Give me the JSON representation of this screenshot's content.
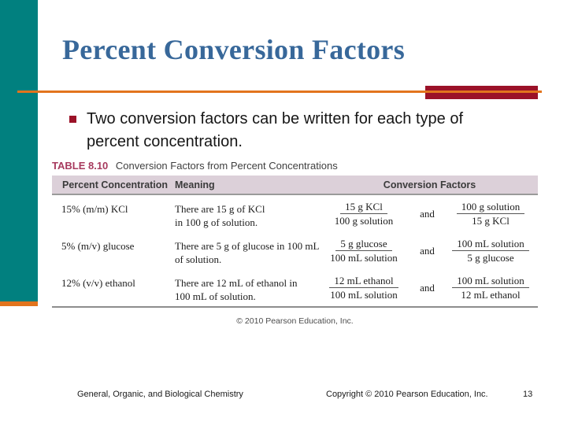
{
  "slide": {
    "title": "Percent Conversion Factors",
    "bullet_text": "Two conversion factors can be written for each type of percent concentration."
  },
  "table": {
    "label": "TABLE 8.10",
    "heading": "Conversion Factors from Percent Concentrations",
    "columns": [
      "Percent Concentration",
      "Meaning",
      "Conversion Factors"
    ],
    "rows": [
      {
        "percent": "15% (m/m) KCl",
        "meaning": [
          "There are 15 g of KCl",
          "in 100 g of solution."
        ],
        "f1_num": "15 g KCl",
        "f1_den": "100 g solution",
        "conj": "and",
        "f2_num": "100 g solution",
        "f2_den": "15 g KCl"
      },
      {
        "percent": "5% (m/v) glucose",
        "meaning": [
          "There are 5 g of glucose in 100 mL",
          "of solution."
        ],
        "f1_num": "5 g glucose",
        "f1_den": "100 mL solution",
        "conj": "and",
        "f2_num": "100 mL solution",
        "f2_den": "5 g glucose"
      },
      {
        "percent": "12% (v/v) ethanol",
        "meaning": [
          "There are 12 mL of ethanol in",
          "100 mL of solution."
        ],
        "f1_num": "12 mL ethanol",
        "f1_den": "100 mL solution",
        "conj": "and",
        "f2_num": "100 mL solution",
        "f2_den": "12 mL ethanol"
      }
    ],
    "caption": "© 2010 Pearson Education, Inc."
  },
  "footer": {
    "left": "General, Organic, and Biological Chemistry",
    "center": "Copyright © 2010 Pearson Education, Inc.",
    "page_number": "13"
  },
  "colors": {
    "teal_bar": "#01807F",
    "orange_accent": "#E2741D",
    "maroon_accent": "#9B1228",
    "title_blue": "#38689A",
    "table_label_rose": "#A73A5E",
    "table_header_bg": "#DCD0D9"
  }
}
